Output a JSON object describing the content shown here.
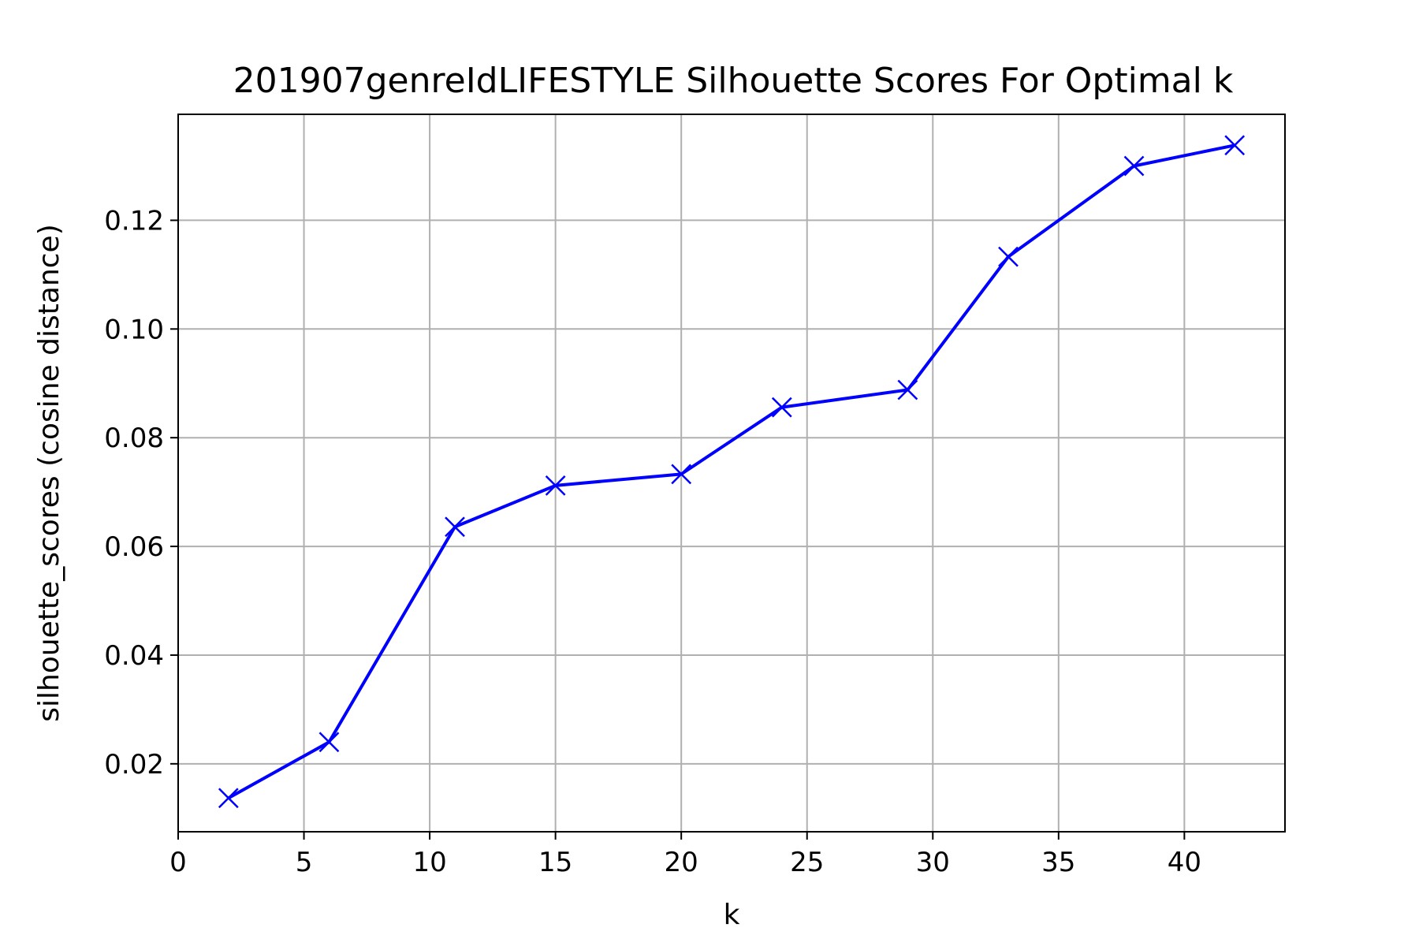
{
  "chart_data": {
    "type": "line",
    "title": "201907genreIdLIFESTYLE Silhouette Scores For Optimal k",
    "xlabel": "k",
    "ylabel": "silhouette_scores (cosine distance)",
    "xlim": [
      0,
      44
    ],
    "ylim": [
      0.0075,
      0.1395
    ],
    "xticks": [
      0,
      5,
      10,
      15,
      20,
      25,
      30,
      35,
      40
    ],
    "yticks": [
      0.02,
      0.04,
      0.06,
      0.08,
      0.1,
      0.12
    ],
    "xtick_labels": [
      "0",
      "5",
      "10",
      "15",
      "20",
      "25",
      "30",
      "35",
      "40"
    ],
    "ytick_labels": [
      "0.02",
      "0.04",
      "0.06",
      "0.08",
      "0.10",
      "0.12"
    ],
    "grid": true,
    "legend": false,
    "series": [
      {
        "color": "#0000ff",
        "marker": "x",
        "x": [
          2,
          6,
          11,
          15,
          20,
          24,
          29,
          33,
          38,
          42
        ],
        "y": [
          0.0137,
          0.024,
          0.0636,
          0.0712,
          0.0733,
          0.0856,
          0.0888,
          0.1133,
          0.13,
          0.1338
        ]
      }
    ]
  }
}
